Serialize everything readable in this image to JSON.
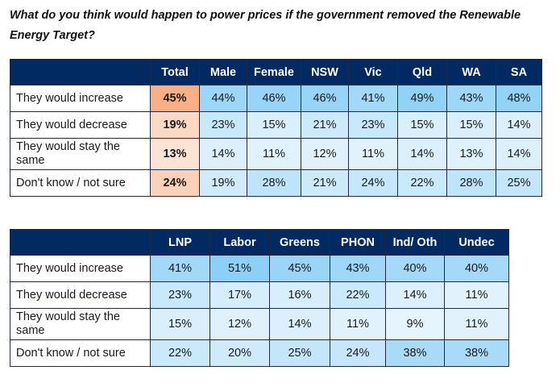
{
  "question": "What do you think would happen to power prices if the government removed the Renewable Energy Target?",
  "colors": {
    "header_bg": "#012a63",
    "total_scale": [
      "#fde9de",
      "#f9a577"
    ],
    "cell_scale": [
      "#e6f4fd",
      "#8dd0f7"
    ]
  },
  "table1": {
    "columns": [
      "Total",
      "Male",
      "Female",
      "NSW",
      "Vic",
      "Qld",
      "WA",
      "SA"
    ],
    "rows": [
      {
        "label": "They would increase",
        "values": [
          "45%",
          "44%",
          "46%",
          "46%",
          "41%",
          "49%",
          "43%",
          "48%"
        ]
      },
      {
        "label": "They would decrease",
        "values": [
          "19%",
          "23%",
          "15%",
          "21%",
          "23%",
          "15%",
          "15%",
          "14%"
        ]
      },
      {
        "label": "They would stay the same",
        "values": [
          "13%",
          "14%",
          "11%",
          "12%",
          "11%",
          "14%",
          "13%",
          "14%"
        ]
      },
      {
        "label": "Don't know / not sure",
        "values": [
          "24%",
          "19%",
          "28%",
          "21%",
          "24%",
          "22%",
          "28%",
          "25%"
        ]
      }
    ]
  },
  "table2": {
    "columns": [
      "LNP",
      "Labor",
      "Greens",
      "PHON",
      "Ind/ Oth",
      "Undec"
    ],
    "rows": [
      {
        "label": "They would increase",
        "values": [
          "41%",
          "51%",
          "45%",
          "43%",
          "40%",
          "40%"
        ]
      },
      {
        "label": "They would decrease",
        "values": [
          "23%",
          "17%",
          "16%",
          "22%",
          "14%",
          "11%"
        ]
      },
      {
        "label": "They would stay the same",
        "values": [
          "15%",
          "12%",
          "14%",
          "11%",
          "9%",
          "11%"
        ]
      },
      {
        "label": "Don't know / not sure",
        "values": [
          "22%",
          "20%",
          "25%",
          "24%",
          "38%",
          "38%"
        ]
      }
    ]
  }
}
